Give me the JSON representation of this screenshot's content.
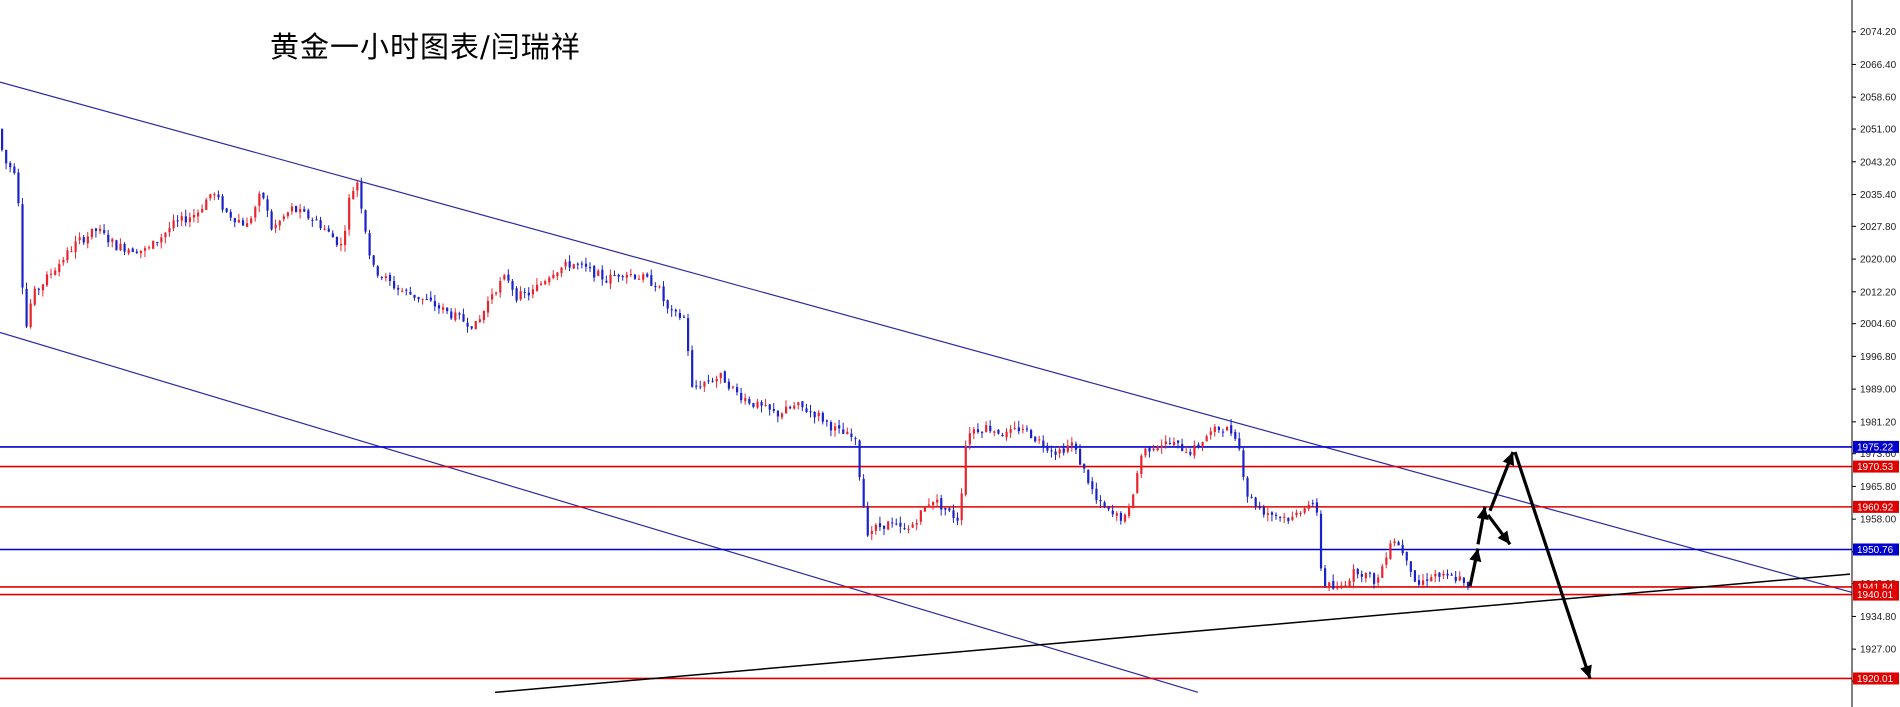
{
  "colors": {
    "up_candle": "#e8242e",
    "down_candle": "#1a22c8",
    "channel_line": "#2a2aa8",
    "trend_line": "#000000",
    "level_red": "#e00000",
    "level_blue": "#0000cc",
    "arrow": "#000000"
  },
  "chart_data": {
    "type": "candlestick",
    "title": "黄金一小时图表/闫瑞祥",
    "price_axis": {
      "range": [
        1917.5,
        2077.0
      ],
      "ticks": [
        "2074.20",
        "2066.40",
        "2058.60",
        "2051.00",
        "2043.20",
        "2035.40",
        "2027.80",
        "2020.00",
        "2012.20",
        "2004.60",
        "1996.80",
        "1989.00",
        "1981.20",
        "1973.60",
        "1965.80",
        "1958.00",
        "1950.20",
        "1942.60",
        "1934.80",
        "1927.00",
        "1919.40"
      ]
    },
    "bars": 360,
    "candle_path": [
      [
        0,
        2051
      ],
      [
        8,
        2043
      ],
      [
        20,
        2041
      ],
      [
        28,
        2002
      ],
      [
        35,
        2011
      ],
      [
        55,
        2017
      ],
      [
        80,
        2024
      ],
      [
        100,
        2027
      ],
      [
        120,
        2023
      ],
      [
        150,
        2022
      ],
      [
        175,
        2028
      ],
      [
        200,
        2031
      ],
      [
        215,
        2036
      ],
      [
        230,
        2031
      ],
      [
        250,
        2028
      ],
      [
        265,
        2036
      ],
      [
        275,
        2027
      ],
      [
        295,
        2032
      ],
      [
        320,
        2029
      ],
      [
        345,
        2023
      ],
      [
        352,
        2034
      ],
      [
        360,
        2039
      ],
      [
        375,
        2018
      ],
      [
        400,
        2013
      ],
      [
        430,
        2010
      ],
      [
        460,
        2006
      ],
      [
        480,
        2004
      ],
      [
        495,
        2012
      ],
      [
        510,
        2016
      ],
      [
        520,
        2011
      ],
      [
        535,
        2012
      ],
      [
        555,
        2017
      ],
      [
        575,
        2019
      ],
      [
        595,
        2017
      ],
      [
        610,
        2015
      ],
      [
        625,
        2017
      ],
      [
        640,
        2016
      ],
      [
        660,
        2014
      ],
      [
        672,
        2007
      ],
      [
        688,
        2006
      ],
      [
        695,
        1989
      ],
      [
        710,
        1991
      ],
      [
        725,
        1992
      ],
      [
        740,
        1988
      ],
      [
        760,
        1985
      ],
      [
        780,
        1983
      ],
      [
        800,
        1985
      ],
      [
        820,
        1983
      ],
      [
        840,
        1979
      ],
      [
        858,
        1977
      ],
      [
        870,
        1955
      ],
      [
        890,
        1957
      ],
      [
        910,
        1955
      ],
      [
        935,
        1963
      ],
      [
        955,
        1959
      ],
      [
        962,
        1958
      ],
      [
        970,
        1979
      ],
      [
        990,
        1980
      ],
      [
        1010,
        1978
      ],
      [
        1025,
        1980
      ],
      [
        1040,
        1977
      ],
      [
        1060,
        1974
      ],
      [
        1075,
        1976
      ],
      [
        1090,
        1968
      ],
      [
        1100,
        1962
      ],
      [
        1115,
        1959
      ],
      [
        1130,
        1958
      ],
      [
        1145,
        1974
      ],
      [
        1160,
        1976
      ],
      [
        1175,
        1976
      ],
      [
        1195,
        1974
      ],
      [
        1210,
        1978
      ],
      [
        1225,
        1980
      ],
      [
        1240,
        1978
      ],
      [
        1250,
        1964
      ],
      [
        1265,
        1960
      ],
      [
        1280,
        1959
      ],
      [
        1295,
        1958
      ],
      [
        1310,
        1962
      ],
      [
        1320,
        1960
      ],
      [
        1325,
        1943
      ],
      [
        1340,
        1941
      ],
      [
        1360,
        1946
      ],
      [
        1380,
        1943
      ],
      [
        1395,
        1954
      ],
      [
        1410,
        1949
      ],
      [
        1420,
        1942
      ],
      [
        1435,
        1945
      ],
      [
        1448,
        1944
      ],
      [
        1462,
        1944
      ],
      [
        1470,
        1941
      ]
    ],
    "channel_lines": [
      {
        "name": "channel-upper",
        "from": [
          0,
          2062.2
        ],
        "to": [
          1883,
          1938.5
        ]
      },
      {
        "name": "channel-lower",
        "from": [
          0,
          2002.5
        ],
        "to": [
          1198,
          1916.7
        ]
      }
    ],
    "trend_lines": [
      {
        "name": "support-trendline",
        "from": [
          495,
          1916.7
        ],
        "to": [
          1850,
          1944.9
        ]
      }
    ],
    "levels": [
      {
        "name": "level-1975-22",
        "price": 1975.22,
        "label": "1975.22",
        "color": "blue"
      },
      {
        "name": "level-1970-53",
        "price": 1970.53,
        "label": "1970.53",
        "color": "red"
      },
      {
        "name": "level-1960-92",
        "price": 1960.92,
        "label": "1960.92",
        "color": "red"
      },
      {
        "name": "level-1950-76",
        "price": 1950.76,
        "label": "1950.76",
        "color": "blue"
      },
      {
        "name": "level-1941-84",
        "price": 1941.84,
        "label": "1941.84",
        "color": "red"
      },
      {
        "name": "level-1940-01",
        "price": 1940.01,
        "label": "1940.01",
        "color": "red"
      },
      {
        "name": "level-1920-01",
        "price": 1920.01,
        "label": "1920.01",
        "color": "red"
      }
    ],
    "projection_arrows": [
      {
        "name": "arrow-up-1",
        "from": [
          1470,
          1942
        ],
        "to": [
          1478,
          1951
        ]
      },
      {
        "name": "arrow-up-2",
        "from": [
          1478,
          1952
        ],
        "to": [
          1485,
          1961
        ]
      },
      {
        "name": "arrow-down-1",
        "from": [
          1488,
          1959
        ],
        "to": [
          1510,
          1952
        ]
      },
      {
        "name": "arrow-up-3",
        "from": [
          1490,
          1960
        ],
        "to": [
          1513,
          1974
        ]
      },
      {
        "name": "arrow-down-2",
        "from": [
          1515,
          1974
        ],
        "to": [
          1590,
          1920
        ]
      }
    ]
  }
}
